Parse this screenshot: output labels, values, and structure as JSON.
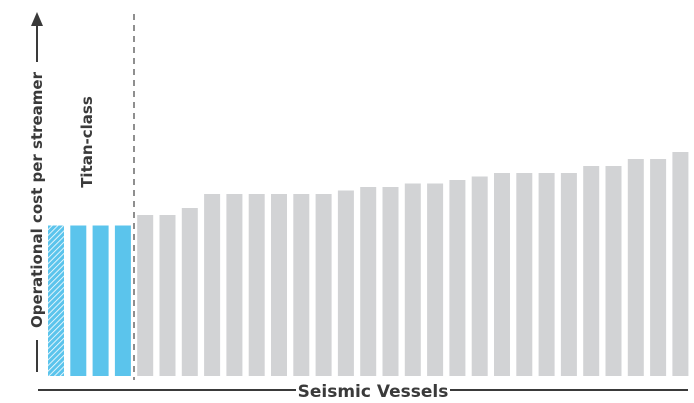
{
  "chart_data": {
    "type": "bar",
    "xlabel": "Seismic Vessels",
    "ylabel": "Operational cost per streamer",
    "highlight_label": "Titan-class",
    "highlight_count": 4,
    "hatched_first": true,
    "colors": {
      "highlight": "#5bc4ec",
      "other": "#d2d3d5",
      "axis": "#3a3a3a",
      "divider": "#6a6a6a"
    },
    "ylim": [
      0,
      1
    ],
    "values": [
      0.43,
      0.43,
      0.43,
      0.43,
      0.46,
      0.46,
      0.48,
      0.52,
      0.52,
      0.52,
      0.52,
      0.52,
      0.52,
      0.53,
      0.54,
      0.54,
      0.55,
      0.55,
      0.56,
      0.57,
      0.58,
      0.58,
      0.58,
      0.58,
      0.6,
      0.6,
      0.62,
      0.62,
      0.64
    ]
  }
}
